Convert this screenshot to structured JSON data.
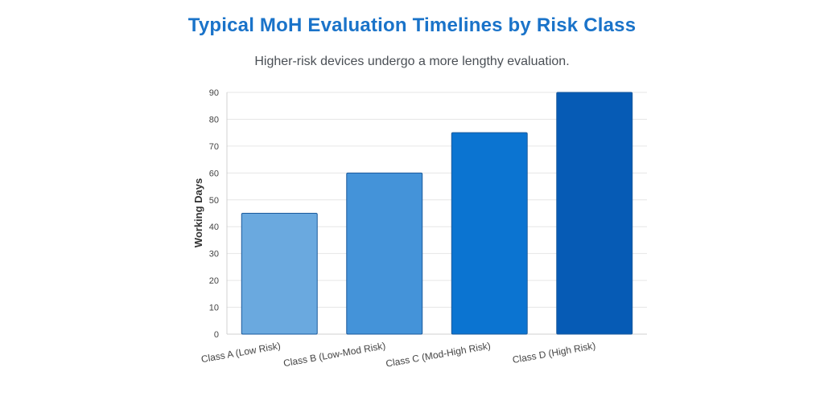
{
  "title": "Typical MoH Evaluation Timelines by Risk Class",
  "subtitle": "Higher-risk devices undergo a more lengthy evaluation.",
  "chart_data": {
    "type": "bar",
    "categories": [
      "Class A (Low Risk)",
      "Class B (Low-Mod Risk)",
      "Class C (Mod-High Risk)",
      "Class D (High Risk)"
    ],
    "values": [
      45,
      60,
      75,
      90
    ],
    "xlabel": "",
    "ylabel": "Working Days",
    "ylim": [
      0,
      90
    ],
    "yticks": [
      0,
      10,
      20,
      30,
      40,
      50,
      60,
      70,
      80,
      90
    ],
    "grid": true,
    "colors": [
      "#6aa9df",
      "#4493d9",
      "#0b74d1",
      "#065bb5"
    ],
    "border_color": "#1a5a9c"
  }
}
